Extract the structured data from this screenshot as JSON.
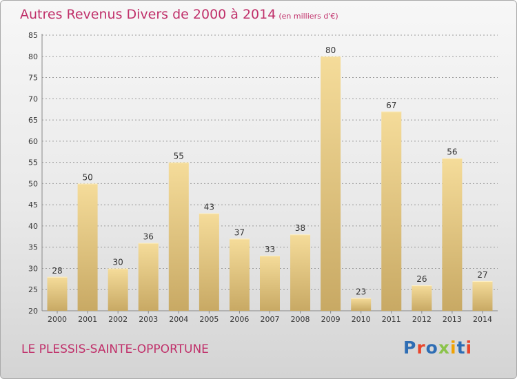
{
  "header": {
    "title": "Autres Revenus Divers de 2000 à 2014",
    "unit": "(en milliers d'€)"
  },
  "footer": {
    "place": "LE PLESSIS-SAINTE-OPPORTUNE",
    "logo_text": "Proxiti",
    "logo_colors": [
      "#2e6db4",
      "#e8452c",
      "#2e6db4",
      "#8bc34a",
      "#f0a202",
      "#2e6db4",
      "#e8452c"
    ]
  },
  "colors": {
    "title": "#c0306a",
    "bar_light": "#f5dc9a",
    "bar_dark": "#c8a964",
    "grid": "#9a9a9a"
  },
  "chart_data": {
    "type": "bar",
    "categories": [
      "2000",
      "2001",
      "2002",
      "2003",
      "2004",
      "2005",
      "2006",
      "2007",
      "2008",
      "2009",
      "2010",
      "2011",
      "2012",
      "2013",
      "2014"
    ],
    "values": [
      28,
      50,
      30,
      36,
      55,
      43,
      37,
      33,
      38,
      80,
      23,
      67,
      26,
      56,
      27
    ],
    "ylim": [
      20,
      85
    ],
    "yticks": [
      20,
      25,
      30,
      35,
      40,
      45,
      50,
      55,
      60,
      65,
      70,
      75,
      80,
      85
    ],
    "grid": "horizontal dashed",
    "data_labels": true
  }
}
